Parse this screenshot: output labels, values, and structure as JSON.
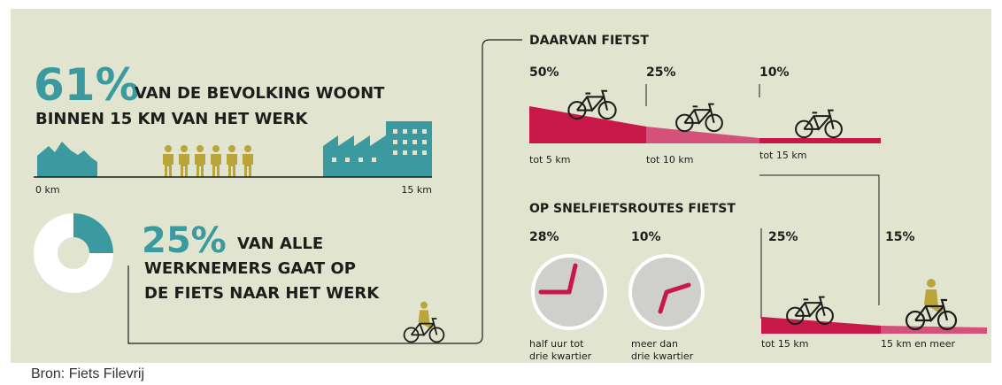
{
  "headline": {
    "percent": "61%",
    "line1": "VAN DE BEVOLKING WOONT",
    "line2": "BINNEN 15 KM VAN HET WERK"
  },
  "distance": {
    "start": "0 km",
    "end": "15 km"
  },
  "cyclists": {
    "percent": "25%",
    "line1": "VAN ALLE",
    "line2": "WERKNEMERS GAAT OP",
    "line3": "DE FIETS NAAR HET WERK"
  },
  "daarvan": {
    "title": "DAARVAN FIETST",
    "items": [
      {
        "percent": "50%",
        "label": "tot 5 km"
      },
      {
        "percent": "25%",
        "label": "tot 10 km"
      },
      {
        "percent": "10%",
        "label": "tot 15 km"
      }
    ]
  },
  "snelfiets": {
    "title": "OP SNELFIETSROUTES FIETST",
    "items": [
      {
        "percent": "28%",
        "label": [
          "half uur tot",
          "drie kwartier"
        ]
      },
      {
        "percent": "10%",
        "label": [
          "meer dan",
          "drie kwartier"
        ]
      },
      {
        "percent": "25%",
        "label": [
          "tot 15 km"
        ]
      },
      {
        "percent": "15%",
        "label": [
          "15 km en meer"
        ]
      }
    ]
  },
  "source": "Bron: Fiets Filevrij"
}
